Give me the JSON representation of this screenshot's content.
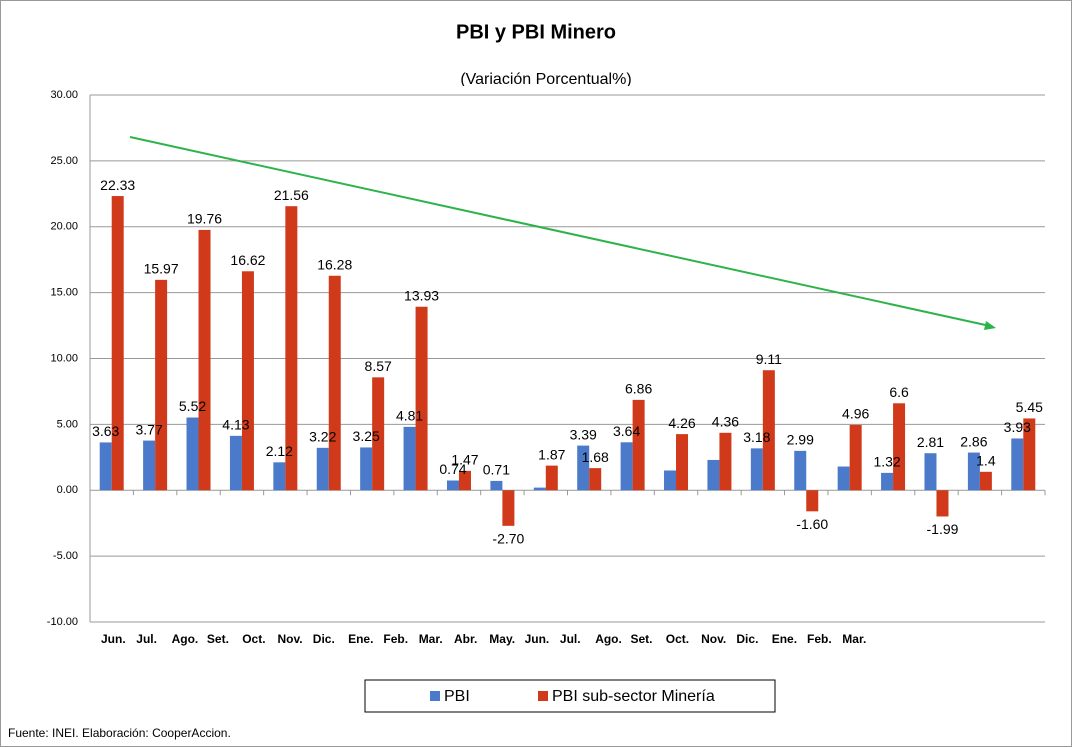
{
  "chart_data": {
    "type": "bar",
    "title": "PBI y PBI Minero",
    "subtitle": "(Variación Porcentual%)",
    "source": "Fuente: INEI. Elaboración: CooperAccion.",
    "categories": [
      "Jun.",
      "Jul.",
      "Ago.",
      "Set.",
      "Oct.",
      "Nov.",
      "Dic.",
      "Ene.",
      "Feb.",
      "Mar.",
      "Abr.",
      "May.",
      "Jun.",
      "Jul.",
      "Ago.",
      "Set.",
      "Oct.",
      "Nov.",
      "Dic.",
      "Ene.",
      "Feb.",
      "Mar."
    ],
    "series": [
      {
        "name": "PBI",
        "color": "#4a7ac9",
        "values": [
          3.63,
          3.77,
          5.52,
          4.13,
          2.12,
          3.22,
          3.25,
          4.81,
          0.74,
          0.71,
          0.2,
          3.39,
          3.64,
          1.5,
          2.3,
          3.18,
          2.99,
          1.8,
          1.32,
          2.81,
          2.86,
          3.93
        ],
        "value_labels": [
          "3.63",
          "3.77",
          "5.52",
          "4.13",
          "2.12",
          "3.22",
          "3.25",
          "4.81",
          "0.74",
          "0.71",
          null,
          "3.39",
          "3.64",
          null,
          null,
          "3.18",
          "2.99",
          null,
          "1.32",
          "2.81",
          "2.86",
          "3.93"
        ]
      },
      {
        "name": "PBI sub-sector Minería",
        "color": "#d03a1a",
        "values": [
          22.33,
          15.97,
          19.76,
          16.62,
          21.56,
          16.28,
          8.57,
          13.93,
          1.47,
          -2.7,
          1.87,
          1.68,
          6.86,
          4.26,
          4.36,
          9.11,
          -1.6,
          4.96,
          6.6,
          -1.99,
          1.4,
          5.45
        ],
        "value_labels": [
          "22.33",
          "15.97",
          "19.76",
          "16.62",
          "21.56",
          "16.28",
          "8.57",
          "13.93",
          "1.47",
          "-2.70",
          "1.87",
          "1.68",
          "6.86",
          "4.26",
          "4.36",
          "9.11",
          "-1.60",
          "4.96",
          "6.6",
          "-1.99",
          "1.4",
          "5.45"
        ]
      }
    ],
    "ylim": [
      -10,
      30
    ],
    "yticks": [
      {
        "value": -10,
        "label": "-10.00"
      },
      {
        "value": -5,
        "label": "-5.00"
      },
      {
        "value": 0,
        "label": "0.00"
      },
      {
        "value": 5,
        "label": "5.00"
      },
      {
        "value": 10,
        "label": "10.00"
      },
      {
        "value": 15,
        "label": "15.00"
      },
      {
        "value": 20,
        "label": "20.00"
      },
      {
        "value": 25,
        "label": "25.00"
      },
      {
        "value": 30,
        "label": "30.00"
      }
    ],
    "grid": true
  }
}
